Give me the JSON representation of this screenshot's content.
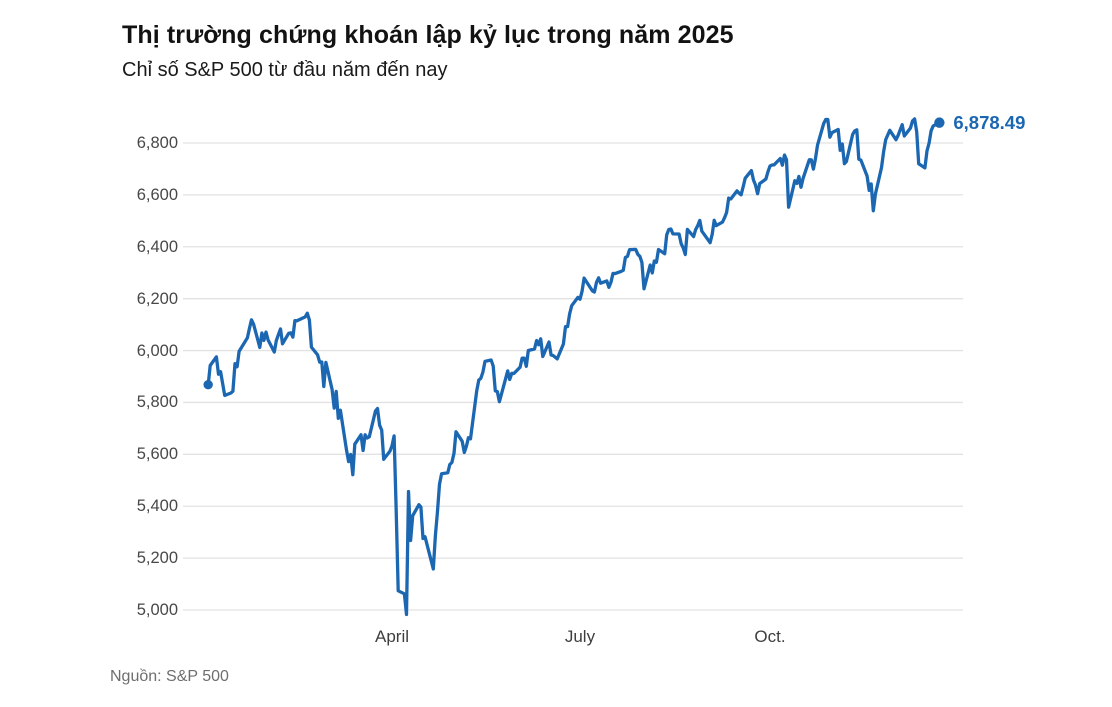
{
  "header": {
    "title": "Thị trường chứng khoán lập kỷ lục trong năm 2025",
    "subtitle": "Chỉ số S&P 500 từ đầu năm đến nay"
  },
  "footer": {
    "source": "Nguồn: S&P 500"
  },
  "colors": {
    "line_blue": "#1c67b2",
    "gridline": "#e2e2e2",
    "tick_text": "#484848",
    "title_text": "#121212",
    "source_text": "#6e6e6e"
  },
  "chart_data": {
    "type": "line",
    "title": "Thị trường chứng khoán lập kỷ lục trong năm 2025",
    "subtitle": "Chỉ số S&P 500 từ đầu năm đến nay",
    "source": "Nguồn: S&P 500",
    "year": 2025,
    "grid": true,
    "legend": false,
    "end_label": "6,878.49",
    "end_value": 6878.49,
    "y_axis": {
      "tick_min": 5000,
      "tick_max": 6800,
      "tick_values": [
        5000,
        5200,
        5400,
        5600,
        5800,
        6000,
        6200,
        6400,
        6600,
        6800
      ],
      "tick_labels": [
        "5,000",
        "5,200",
        "5,400",
        "5,600",
        "5,800",
        "6,000",
        "6,200",
        "6,400",
        "6,600",
        "6,800"
      ]
    },
    "x_axis": {
      "tick_dates": [
        "04-01",
        "07-01",
        "10-01"
      ],
      "tick_labels": [
        "April",
        "July",
        "Oct."
      ]
    },
    "series": [
      {
        "name": "S&P 500",
        "start_marker": true,
        "end_marker": true,
        "points": [
          [
            "01-02",
            5868.55
          ],
          [
            "01-03",
            5942.47
          ],
          [
            "01-06",
            5975.38
          ],
          [
            "01-07",
            5909.03
          ],
          [
            "01-08",
            5918.25
          ],
          [
            "01-10",
            5827.04
          ],
          [
            "01-13",
            5836.22
          ],
          [
            "01-14",
            5842.91
          ],
          [
            "01-15",
            5949.91
          ],
          [
            "01-16",
            5937.34
          ],
          [
            "01-17",
            5996.66
          ],
          [
            "01-21",
            6049.24
          ],
          [
            "01-22",
            6086.37
          ],
          [
            "01-23",
            6118.71
          ],
          [
            "01-24",
            6101.24
          ],
          [
            "01-27",
            6012.28
          ],
          [
            "01-28",
            6067.7
          ],
          [
            "01-29",
            6039.31
          ],
          [
            "01-30",
            6071.17
          ],
          [
            "01-31",
            6040.53
          ],
          [
            "02-03",
            5994.57
          ],
          [
            "02-04",
            6037.88
          ],
          [
            "02-05",
            6061.48
          ],
          [
            "02-06",
            6083.57
          ],
          [
            "02-07",
            6025.99
          ],
          [
            "02-10",
            6066.44
          ],
          [
            "02-11",
            6068.5
          ],
          [
            "02-12",
            6051.97
          ],
          [
            "02-13",
            6115.07
          ],
          [
            "02-14",
            6114.63
          ],
          [
            "02-18",
            6129.58
          ],
          [
            "02-19",
            6144.15
          ],
          [
            "02-20",
            6117.52
          ],
          [
            "02-21",
            6013.13
          ],
          [
            "02-24",
            5983.25
          ],
          [
            "02-25",
            5955.25
          ],
          [
            "02-26",
            5956.06
          ],
          [
            "02-27",
            5861.57
          ],
          [
            "02-28",
            5954.5
          ],
          [
            "03-03",
            5849.72
          ],
          [
            "03-04",
            5778.15
          ],
          [
            "03-05",
            5842.63
          ],
          [
            "03-06",
            5738.52
          ],
          [
            "03-07",
            5770.2
          ],
          [
            "03-10",
            5614.56
          ],
          [
            "03-11",
            5572.07
          ],
          [
            "03-12",
            5599.3
          ],
          [
            "03-13",
            5521.52
          ],
          [
            "03-14",
            5638.94
          ],
          [
            "03-17",
            5675.12
          ],
          [
            "03-18",
            5614.66
          ],
          [
            "03-19",
            5675.29
          ],
          [
            "03-20",
            5662.89
          ],
          [
            "03-21",
            5667.56
          ],
          [
            "03-24",
            5767.57
          ],
          [
            "03-25",
            5776.65
          ],
          [
            "03-26",
            5712.2
          ],
          [
            "03-27",
            5693.31
          ],
          [
            "03-28",
            5580.94
          ],
          [
            "03-31",
            5611.85
          ],
          [
            "04-01",
            5633.07
          ],
          [
            "04-02",
            5670.97
          ],
          [
            "04-03",
            5396.52
          ],
          [
            "04-04",
            5074.08
          ],
          [
            "04-07",
            5062.25
          ],
          [
            "04-08",
            4982.77
          ],
          [
            "04-09",
            5456.9
          ],
          [
            "04-10",
            5268.05
          ],
          [
            "04-11",
            5363.36
          ],
          [
            "04-14",
            5405.97
          ],
          [
            "04-15",
            5396.63
          ],
          [
            "04-16",
            5275.7
          ],
          [
            "04-17",
            5282.7
          ],
          [
            "04-21",
            5158.2
          ],
          [
            "04-22",
            5287.76
          ],
          [
            "04-23",
            5375.86
          ],
          [
            "04-24",
            5484.77
          ],
          [
            "04-25",
            5525.21
          ],
          [
            "04-28",
            5528.75
          ],
          [
            "04-29",
            5560.83
          ],
          [
            "04-30",
            5569.06
          ],
          [
            "05-01",
            5604.14
          ],
          [
            "05-02",
            5686.67
          ],
          [
            "05-05",
            5650.38
          ],
          [
            "05-06",
            5606.91
          ],
          [
            "05-07",
            5631.28
          ],
          [
            "05-08",
            5663.94
          ],
          [
            "05-09",
            5659.91
          ],
          [
            "05-12",
            5844.19
          ],
          [
            "05-13",
            5886.55
          ],
          [
            "05-14",
            5892.58
          ],
          [
            "05-15",
            5916.93
          ],
          [
            "05-16",
            5958.38
          ],
          [
            "05-19",
            5963.6
          ],
          [
            "05-20",
            5940.46
          ],
          [
            "05-21",
            5844.61
          ],
          [
            "05-22",
            5842.01
          ],
          [
            "05-23",
            5802.82
          ],
          [
            "05-27",
            5921.54
          ],
          [
            "05-28",
            5888.55
          ],
          [
            "05-29",
            5912.17
          ],
          [
            "05-30",
            5911.69
          ],
          [
            "06-02",
            5935.94
          ],
          [
            "06-03",
            5970.37
          ],
          [
            "06-04",
            5970.81
          ],
          [
            "06-05",
            5939.3
          ],
          [
            "06-06",
            6000.36
          ],
          [
            "06-09",
            6005.88
          ],
          [
            "06-10",
            6038.81
          ],
          [
            "06-11",
            6022.24
          ],
          [
            "06-12",
            6045.26
          ],
          [
            "06-13",
            5976.97
          ],
          [
            "06-16",
            6033.11
          ],
          [
            "06-17",
            5982.72
          ],
          [
            "06-18",
            5980.87
          ],
          [
            "06-20",
            5967.84
          ],
          [
            "06-23",
            6025.17
          ],
          [
            "06-24",
            6092.18
          ],
          [
            "06-25",
            6092.16
          ],
          [
            "06-26",
            6141.02
          ],
          [
            "06-27",
            6173.07
          ],
          [
            "06-30",
            6204.95
          ],
          [
            "07-01",
            6198.01
          ],
          [
            "07-02",
            6227.42
          ],
          [
            "07-03",
            6279.35
          ],
          [
            "07-07",
            6229.98
          ],
          [
            "07-08",
            6225.52
          ],
          [
            "07-09",
            6263.26
          ],
          [
            "07-10",
            6280.46
          ],
          [
            "07-11",
            6259.75
          ],
          [
            "07-14",
            6268.56
          ],
          [
            "07-15",
            6243.76
          ],
          [
            "07-16",
            6263.7
          ],
          [
            "07-17",
            6297.36
          ],
          [
            "07-18",
            6296.79
          ],
          [
            "07-21",
            6305.6
          ],
          [
            "07-22",
            6309.62
          ],
          [
            "07-23",
            6358.91
          ],
          [
            "07-24",
            6363.35
          ],
          [
            "07-25",
            6388.64
          ],
          [
            "07-28",
            6389.77
          ],
          [
            "07-29",
            6370.86
          ],
          [
            "07-30",
            6362.9
          ],
          [
            "07-31",
            6339.39
          ],
          [
            "08-01",
            6238.01
          ],
          [
            "08-04",
            6329.94
          ],
          [
            "08-05",
            6299.19
          ],
          [
            "08-06",
            6345.06
          ],
          [
            "08-07",
            6340.0
          ],
          [
            "08-08",
            6389.45
          ],
          [
            "08-11",
            6373.45
          ],
          [
            "08-12",
            6445.76
          ],
          [
            "08-13",
            6466.58
          ],
          [
            "08-14",
            6468.54
          ],
          [
            "08-15",
            6449.8
          ],
          [
            "08-18",
            6449.15
          ],
          [
            "08-19",
            6411.37
          ],
          [
            "08-20",
            6395.78
          ],
          [
            "08-21",
            6370.17
          ],
          [
            "08-22",
            6466.91
          ],
          [
            "08-25",
            6439.32
          ],
          [
            "08-26",
            6465.94
          ],
          [
            "08-27",
            6481.4
          ],
          [
            "08-28",
            6501.86
          ],
          [
            "08-29",
            6460.26
          ],
          [
            "09-02",
            6415.54
          ],
          [
            "09-03",
            6448.26
          ],
          [
            "09-04",
            6502.08
          ],
          [
            "09-05",
            6481.5
          ],
          [
            "09-08",
            6495.15
          ],
          [
            "09-09",
            6512.61
          ],
          [
            "09-10",
            6532.04
          ],
          [
            "09-11",
            6587.47
          ],
          [
            "09-12",
            6584.29
          ],
          [
            "09-15",
            6615.28
          ],
          [
            "09-16",
            6606.76
          ],
          [
            "09-17",
            6600.35
          ],
          [
            "09-18",
            6631.96
          ],
          [
            "09-19",
            6664.36
          ],
          [
            "09-22",
            6693.75
          ],
          [
            "09-23",
            6656.92
          ],
          [
            "09-24",
            6637.97
          ],
          [
            "09-25",
            6604.72
          ],
          [
            "09-26",
            6643.7
          ],
          [
            "09-29",
            6661.21
          ],
          [
            "09-30",
            6688.46
          ],
          [
            "10-01",
            6711.2
          ],
          [
            "10-02",
            6715.35
          ],
          [
            "10-03",
            6715.79
          ],
          [
            "10-06",
            6740.28
          ],
          [
            "10-07",
            6714.59
          ],
          [
            "10-08",
            6753.72
          ],
          [
            "10-09",
            6735.11
          ],
          [
            "10-10",
            6552.51
          ],
          [
            "10-13",
            6654.72
          ],
          [
            "10-14",
            6644.31
          ],
          [
            "10-15",
            6671.06
          ],
          [
            "10-16",
            6629.07
          ],
          [
            "10-17",
            6664.01
          ],
          [
            "10-20",
            6735.13
          ],
          [
            "10-21",
            6735.35
          ],
          [
            "10-22",
            6699.4
          ],
          [
            "10-23",
            6738.44
          ],
          [
            "10-24",
            6791.69
          ],
          [
            "10-27",
            6875.16
          ],
          [
            "10-28",
            6890.89
          ],
          [
            "10-29",
            6890.59
          ],
          [
            "10-30",
            6822.34
          ],
          [
            "10-31",
            6840.2
          ],
          [
            "11-03",
            6851.97
          ],
          [
            "11-04",
            6771.55
          ],
          [
            "11-05",
            6796.29
          ],
          [
            "11-06",
            6720.32
          ],
          [
            "11-07",
            6728.8
          ],
          [
            "11-10",
            6832.43
          ],
          [
            "11-11",
            6846.61
          ],
          [
            "11-12",
            6850.92
          ],
          [
            "11-13",
            6737.49
          ],
          [
            "11-14",
            6734.11
          ],
          [
            "11-17",
            6672.41
          ],
          [
            "11-18",
            6617.32
          ],
          [
            "11-19",
            6642.16
          ],
          [
            "11-20",
            6538.76
          ],
          [
            "11-21",
            6602.99
          ],
          [
            "11-24",
            6705.12
          ],
          [
            "11-25",
            6765.88
          ],
          [
            "11-26",
            6812.61
          ],
          [
            "11-28",
            6849.09
          ],
          [
            "12-01",
            6812.63
          ],
          [
            "12-02",
            6829.37
          ],
          [
            "12-03",
            6849.72
          ],
          [
            "12-04",
            6870.4
          ],
          [
            "12-05",
            6827.0
          ],
          [
            "12-08",
            6858.0
          ],
          [
            "12-09",
            6885.0
          ],
          [
            "12-10",
            6893.0
          ],
          [
            "12-11",
            6843.0
          ],
          [
            "12-12",
            6720.0
          ],
          [
            "12-15",
            6704.0
          ],
          [
            "12-16",
            6770.0
          ],
          [
            "12-17",
            6800.0
          ],
          [
            "12-18",
            6847.0
          ],
          [
            "12-19",
            6866.0
          ],
          [
            "12-22",
            6878.49
          ]
        ]
      }
    ]
  }
}
